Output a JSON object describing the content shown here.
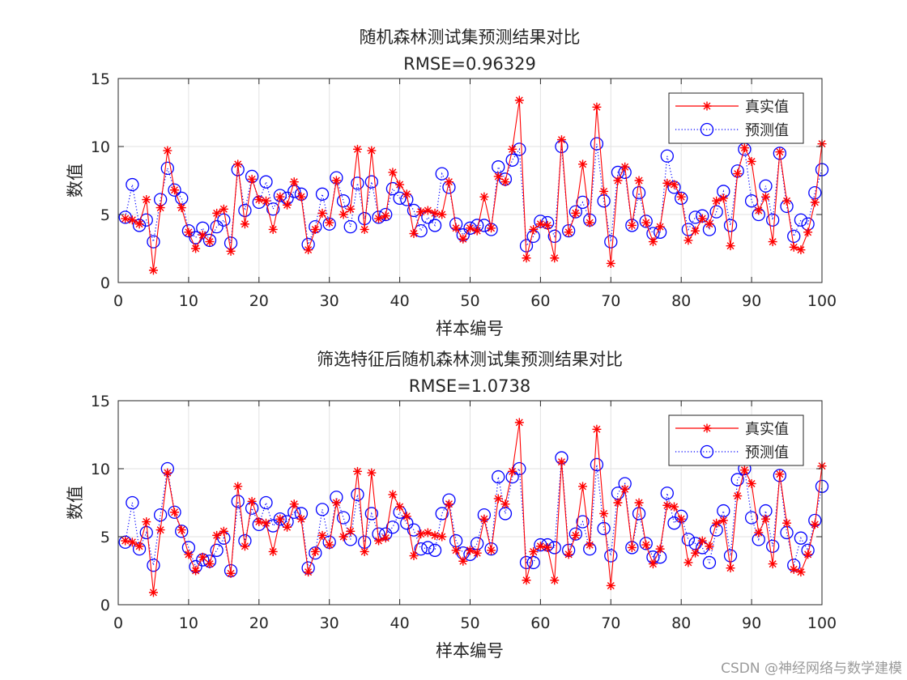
{
  "watermark": "CSDN @神经网络与数学建模",
  "chart_data": [
    {
      "type": "line",
      "title": "随机森林测试集预测结果对比",
      "subtitle": "RMSE=0.96329",
      "xlabel": "样本编号",
      "ylabel": "数值",
      "xlim": [
        0,
        100
      ],
      "ylim": [
        0,
        15
      ],
      "xticks": [
        0,
        10,
        20,
        30,
        40,
        50,
        60,
        70,
        80,
        90,
        100
      ],
      "yticks": [
        0,
        5,
        10,
        15
      ],
      "grid": true,
      "legend_position": "top-right",
      "x_start": 1,
      "series": [
        {
          "name": "真实值",
          "style": "solid-star",
          "color": "#ff0000",
          "values": [
            4.7,
            4.6,
            4.3,
            6.1,
            0.9,
            5.5,
            9.7,
            6.8,
            5.5,
            3.7,
            2.5,
            3.5,
            3.0,
            5.1,
            5.4,
            2.3,
            8.7,
            4.3,
            7.6,
            6.1,
            6.0,
            3.9,
            6.3,
            5.7,
            7.4,
            6.3,
            2.4,
            3.9,
            5.1,
            4.4,
            7.5,
            5.0,
            5.4,
            9.8,
            3.9,
            9.7,
            4.7,
            4.9,
            8.1,
            7.2,
            6.5,
            3.6,
            5.2,
            5.3,
            5.1,
            5.0,
            7.4,
            4.0,
            3.2,
            4.0,
            3.8,
            6.3,
            4.0,
            7.8,
            7.4,
            9.8,
            13.4,
            1.8,
            3.9,
            4.3,
            4.2,
            1.8,
            10.5,
            3.7,
            5.1,
            8.7,
            4.4,
            12.9,
            6.7,
            1.4,
            7.5,
            8.5,
            4.2,
            7.5,
            4.4,
            3.0,
            4.1,
            7.3,
            7.2,
            6.3,
            3.1,
            3.8,
            4.7,
            4.3,
            6.0,
            6.2,
            2.7,
            8.0,
            9.9,
            8.9,
            5.3,
            6.3,
            3.0,
            9.6,
            6.0,
            2.6,
            2.4,
            3.7,
            5.9,
            10.2
          ]
        },
        {
          "name": "预测值",
          "style": "dotted-circle",
          "color": "#0000ff",
          "values": [
            4.8,
            7.2,
            4.2,
            4.6,
            3.0,
            6.1,
            8.4,
            6.8,
            6.2,
            3.8,
            3.3,
            4.0,
            3.1,
            4.1,
            4.6,
            2.9,
            8.3,
            5.3,
            7.8,
            5.9,
            7.4,
            5.4,
            6.4,
            6.2,
            6.7,
            6.5,
            2.8,
            4.1,
            6.5,
            4.3,
            7.7,
            6.0,
            4.1,
            7.3,
            4.7,
            7.4,
            4.8,
            5.0,
            6.9,
            6.2,
            6.1,
            5.3,
            3.8,
            4.8,
            4.2,
            8.0,
            7.0,
            4.3,
            3.5,
            4.0,
            4.2,
            4.2,
            3.9,
            8.5,
            7.6,
            9.0,
            9.8,
            2.7,
            3.4,
            4.5,
            4.4,
            3.4,
            10.0,
            3.8,
            5.2,
            5.9,
            4.6,
            10.2,
            6.0,
            3.0,
            8.1,
            8.1,
            4.2,
            6.6,
            4.5,
            3.6,
            3.7,
            9.3,
            7.0,
            6.2,
            3.9,
            4.8,
            4.9,
            3.9,
            5.2,
            6.7,
            4.2,
            8.2,
            9.8,
            6.0,
            5.0,
            7.1,
            4.6,
            9.5,
            5.6,
            3.4,
            4.6,
            4.3,
            6.6,
            8.3
          ]
        }
      ]
    },
    {
      "type": "line",
      "title": "筛选特征后随机森林测试集预测结果对比",
      "subtitle": "RMSE=1.0738",
      "xlabel": "样本编号",
      "ylabel": "数值",
      "xlim": [
        0,
        100
      ],
      "ylim": [
        0,
        15
      ],
      "xticks": [
        0,
        10,
        20,
        30,
        40,
        50,
        60,
        70,
        80,
        90,
        100
      ],
      "yticks": [
        0,
        5,
        10,
        15
      ],
      "grid": true,
      "legend_position": "top-right",
      "x_start": 1,
      "series": [
        {
          "name": "真实值",
          "style": "solid-star",
          "color": "#ff0000",
          "values": [
            4.7,
            4.6,
            4.3,
            6.1,
            0.9,
            5.5,
            9.7,
            6.8,
            5.5,
            3.7,
            2.5,
            3.5,
            3.0,
            5.1,
            5.4,
            2.3,
            8.7,
            4.3,
            7.6,
            6.1,
            6.0,
            3.9,
            6.3,
            5.7,
            7.4,
            6.3,
            2.4,
            3.9,
            5.1,
            4.4,
            7.5,
            5.0,
            5.4,
            9.8,
            3.9,
            9.7,
            4.7,
            4.9,
            8.1,
            7.2,
            6.5,
            3.6,
            5.2,
            5.3,
            5.1,
            5.0,
            7.4,
            4.0,
            3.2,
            4.0,
            3.8,
            6.3,
            4.0,
            7.8,
            7.4,
            9.8,
            13.4,
            1.8,
            3.9,
            4.3,
            4.2,
            1.8,
            10.5,
            3.7,
            5.1,
            8.7,
            4.4,
            12.9,
            6.7,
            1.4,
            7.5,
            8.5,
            4.2,
            7.5,
            4.4,
            3.0,
            4.1,
            7.3,
            7.2,
            6.3,
            3.1,
            3.8,
            4.7,
            4.3,
            6.0,
            6.2,
            2.7,
            8.0,
            9.9,
            8.9,
            5.3,
            6.3,
            3.0,
            9.6,
            6.0,
            2.6,
            2.4,
            3.7,
            5.9,
            10.2
          ]
        },
        {
          "name": "预测值",
          "style": "dotted-circle",
          "color": "#0000ff",
          "values": [
            4.6,
            7.5,
            4.1,
            5.3,
            2.9,
            6.6,
            10.0,
            6.8,
            5.4,
            4.2,
            2.8,
            3.3,
            3.2,
            4.0,
            4.9,
            2.5,
            7.6,
            4.7,
            7.1,
            5.9,
            7.5,
            5.8,
            6.3,
            6.1,
            6.8,
            6.7,
            2.7,
            3.8,
            7.0,
            4.6,
            7.9,
            6.4,
            4.8,
            8.1,
            4.6,
            6.7,
            5.2,
            5.2,
            5.7,
            6.8,
            6.0,
            5.5,
            4.1,
            4.2,
            4.0,
            6.7,
            7.7,
            4.7,
            3.8,
            3.7,
            4.5,
            6.6,
            4.1,
            9.4,
            6.7,
            9.4,
            10.0,
            3.1,
            3.1,
            4.4,
            4.4,
            4.2,
            10.8,
            4.0,
            5.2,
            6.1,
            4.1,
            10.3,
            5.6,
            3.6,
            8.2,
            8.9,
            4.2,
            6.7,
            4.5,
            3.5,
            3.5,
            8.2,
            6.0,
            6.5,
            4.8,
            4.5,
            4.2,
            3.1,
            5.5,
            6.9,
            3.6,
            9.2,
            10.0,
            6.4,
            4.8,
            6.9,
            4.3,
            9.5,
            5.3,
            2.9,
            4.9,
            4.0,
            6.2,
            8.7
          ]
        }
      ]
    }
  ]
}
